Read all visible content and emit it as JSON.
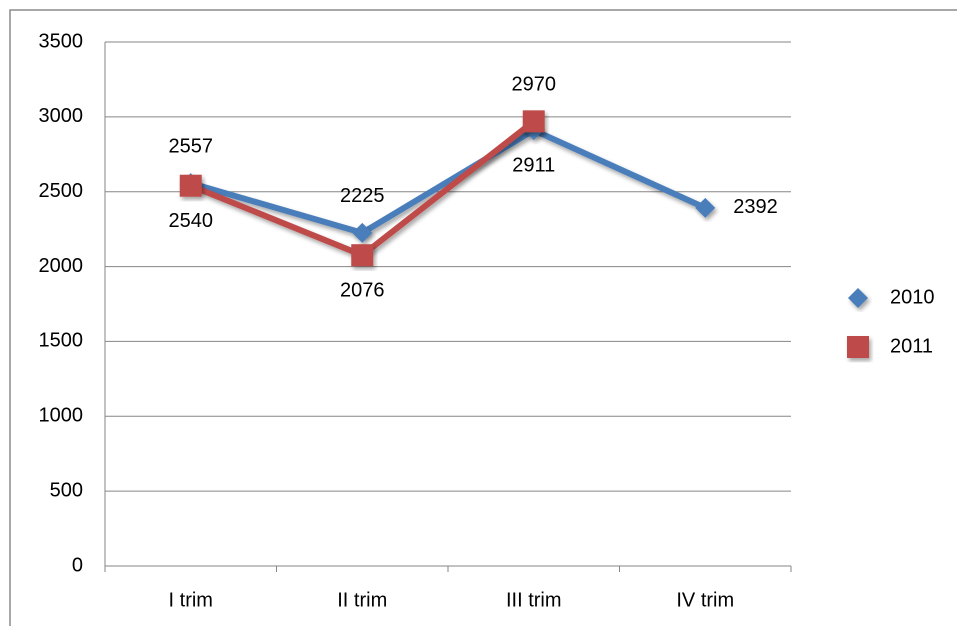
{
  "chart_data": {
    "type": "line",
    "categories": [
      "I trim",
      "II trim",
      "III trim",
      "IV trim"
    ],
    "series": [
      {
        "name": "2010",
        "color": "#4a7ebb",
        "values": [
          2557,
          2225,
          2911,
          2392
        ]
      },
      {
        "name": "2011",
        "color": "#be4b48",
        "values": [
          2540,
          2076,
          2970,
          null
        ]
      }
    ],
    "ylim": [
      0,
      3500
    ],
    "yticks": [
      0,
      500,
      1000,
      1500,
      2000,
      2500,
      3000,
      3500
    ],
    "grid": true,
    "legend": "right"
  }
}
